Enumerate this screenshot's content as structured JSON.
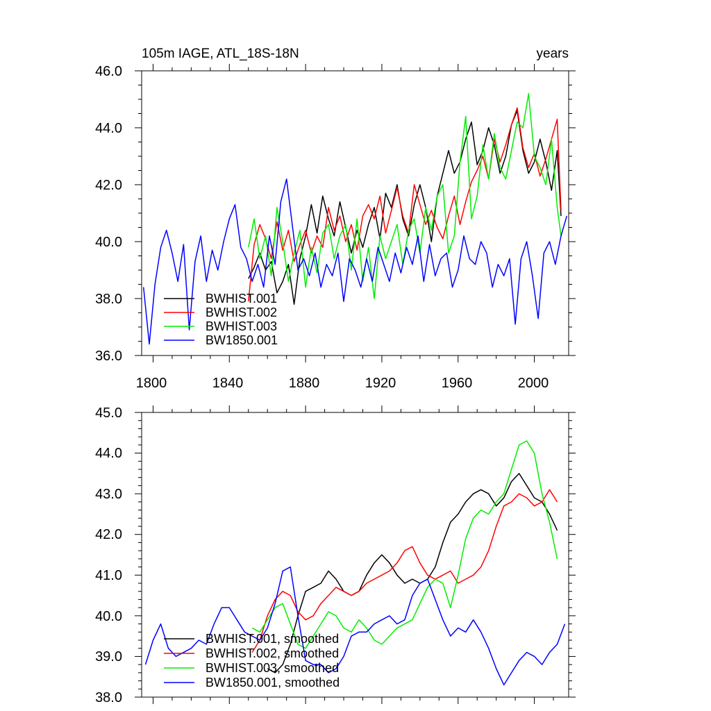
{
  "chart_data": [
    {
      "type": "line",
      "title": "105m IAGE, ATL_18S-18N",
      "units": "years",
      "xlim": [
        1794,
        2018
      ],
      "ylim": [
        36.0,
        46.0
      ],
      "x_ticks": [
        "1800",
        "1840",
        "1880",
        "1920",
        "1960",
        "2000"
      ],
      "y_ticks": [
        "36.0",
        "38.0",
        "40.0",
        "42.0",
        "44.0",
        "46.0"
      ],
      "legend_position": "bottom-left",
      "series": [
        {
          "name": "BWHIST.001",
          "color": "#000000",
          "x": [
            1850,
            1853,
            1856,
            1859,
            1862,
            1865,
            1868,
            1871,
            1874,
            1877,
            1880,
            1883,
            1886,
            1889,
            1892,
            1895,
            1898,
            1901,
            1904,
            1907,
            1910,
            1913,
            1916,
            1919,
            1922,
            1925,
            1928,
            1931,
            1934,
            1937,
            1940,
            1943,
            1946,
            1949,
            1952,
            1955,
            1958,
            1961,
            1964,
            1967,
            1970,
            1973,
            1976,
            1979,
            1982,
            1985,
            1988,
            1991,
            1994,
            1997,
            2000,
            2003,
            2006,
            2009,
            2012,
            2014
          ],
          "values": [
            38.7,
            39.1,
            39.6,
            39.0,
            39.3,
            38.2,
            38.6,
            39.2,
            37.8,
            39.4,
            40.2,
            41.3,
            40.3,
            41.6,
            40.8,
            40.2,
            41.4,
            40.5,
            39.6,
            40.4,
            39.8,
            40.6,
            41.2,
            40.1,
            41.7,
            41.2,
            42.0,
            40.8,
            40.2,
            41.3,
            42.0,
            41.2,
            40.0,
            41.6,
            42.4,
            43.2,
            42.4,
            42.8,
            43.6,
            44.2,
            42.7,
            43.2,
            44.0,
            43.4,
            42.4,
            43.0,
            44.1,
            44.6,
            43.2,
            42.4,
            42.8,
            43.6,
            42.8,
            41.8,
            43.2,
            40.9
          ]
        },
        {
          "name": "BWHIST.002",
          "color": "#ff0000",
          "x": [
            1850,
            1853,
            1856,
            1859,
            1862,
            1865,
            1868,
            1871,
            1874,
            1877,
            1880,
            1883,
            1886,
            1889,
            1892,
            1895,
            1898,
            1901,
            1904,
            1907,
            1910,
            1913,
            1916,
            1919,
            1922,
            1925,
            1928,
            1931,
            1934,
            1937,
            1940,
            1943,
            1946,
            1949,
            1952,
            1955,
            1958,
            1961,
            1964,
            1967,
            1970,
            1973,
            1976,
            1979,
            1982,
            1985,
            1988,
            1991,
            1994,
            1997,
            2000,
            2003,
            2006,
            2009,
            2012,
            2014
          ],
          "values": [
            37.9,
            39.9,
            40.6,
            40.1,
            39.4,
            40.7,
            39.7,
            40.4,
            39.3,
            39.9,
            40.4,
            39.6,
            40.2,
            39.8,
            41.2,
            40.4,
            40.9,
            40.0,
            40.6,
            39.7,
            40.9,
            41.3,
            40.8,
            41.6,
            40.3,
            41.1,
            41.9,
            40.9,
            40.3,
            42.0,
            41.3,
            40.6,
            41.1,
            40.5,
            40.1,
            40.9,
            41.6,
            40.6,
            41.4,
            42.1,
            42.5,
            43.0,
            42.2,
            43.6,
            42.8,
            43.4,
            44.1,
            44.7,
            43.3,
            42.6,
            43.1,
            42.3,
            42.9,
            43.6,
            44.3,
            41.1
          ]
        },
        {
          "name": "BWHIST.003",
          "color": "#00ee00",
          "x": [
            1850,
            1853,
            1856,
            1859,
            1862,
            1865,
            1868,
            1871,
            1874,
            1877,
            1880,
            1883,
            1886,
            1889,
            1892,
            1895,
            1898,
            1901,
            1904,
            1907,
            1910,
            1913,
            1916,
            1919,
            1922,
            1925,
            1928,
            1931,
            1934,
            1937,
            1940,
            1943,
            1946,
            1949,
            1952,
            1955,
            1958,
            1961,
            1964,
            1967,
            1970,
            1973,
            1976,
            1979,
            1982,
            1985,
            1988,
            1991,
            1994,
            1997,
            2000,
            2003,
            2006,
            2009,
            2012,
            2014
          ],
          "values": [
            39.8,
            40.8,
            39.4,
            40.2,
            38.8,
            41.2,
            40.0,
            38.6,
            39.6,
            40.4,
            38.4,
            39.8,
            38.9,
            40.3,
            40.6,
            39.4,
            40.2,
            40.6,
            39.0,
            40.8,
            38.6,
            39.8,
            38.0,
            40.2,
            39.4,
            40.0,
            40.6,
            39.2,
            40.4,
            40.8,
            39.6,
            41.2,
            40.4,
            41.6,
            42.0,
            39.6,
            40.2,
            42.8,
            44.4,
            40.8,
            41.6,
            43.4,
            42.2,
            43.8,
            42.6,
            42.2,
            43.2,
            44.2,
            44.0,
            45.2,
            43.0,
            42.6,
            42.0,
            43.6,
            41.2,
            40.2
          ]
        },
        {
          "name": "BW1850.001",
          "color": "#0000ff",
          "x": [
            1795,
            1798,
            1801,
            1804,
            1807,
            1810,
            1813,
            1816,
            1819,
            1822,
            1825,
            1828,
            1831,
            1834,
            1837,
            1840,
            1843,
            1846,
            1849,
            1852,
            1855,
            1858,
            1861,
            1864,
            1867,
            1870,
            1873,
            1876,
            1879,
            1882,
            1885,
            1888,
            1891,
            1894,
            1897,
            1900,
            1903,
            1906,
            1909,
            1912,
            1915,
            1918,
            1921,
            1924,
            1927,
            1930,
            1933,
            1936,
            1939,
            1942,
            1945,
            1948,
            1951,
            1954,
            1957,
            1960,
            1963,
            1966,
            1969,
            1972,
            1975,
            1978,
            1981,
            1984,
            1987,
            1990,
            1993,
            1996,
            1999,
            2002,
            2005,
            2008,
            2011,
            2014,
            2017
          ],
          "values": [
            38.4,
            36.4,
            38.5,
            39.8,
            40.4,
            39.6,
            38.6,
            39.9,
            36.9,
            39.3,
            40.2,
            38.6,
            39.7,
            39.0,
            40.0,
            40.8,
            41.3,
            39.8,
            39.4,
            38.6,
            39.2,
            38.4,
            40.2,
            39.2,
            41.4,
            42.2,
            40.6,
            39.0,
            39.4,
            38.8,
            39.6,
            38.4,
            39.2,
            38.8,
            39.6,
            37.9,
            39.4,
            39.0,
            38.4,
            39.4,
            38.6,
            39.8,
            39.2,
            38.6,
            39.6,
            38.9,
            39.8,
            39.2,
            40.2,
            38.6,
            39.9,
            38.8,
            39.4,
            39.6,
            38.4,
            39.0,
            40.2,
            39.4,
            39.2,
            40.0,
            39.6,
            38.4,
            39.2,
            38.8,
            39.4,
            37.1,
            39.4,
            40.0,
            38.8,
            37.3,
            39.6,
            40.0,
            39.2,
            40.2,
            40.9
          ]
        }
      ]
    },
    {
      "type": "line",
      "title": "",
      "xlim": [
        1794,
        2018
      ],
      "ylim": [
        38.0,
        45.0
      ],
      "x_ticks": [],
      "y_ticks": [
        "38.0",
        "39.0",
        "40.0",
        "41.0",
        "42.0",
        "43.0",
        "44.0",
        "45.0"
      ],
      "legend_position": "bottom-left",
      "series": [
        {
          "name": "BWHIST.001, smoothed",
          "color": "#000000",
          "x": [
            1860,
            1864,
            1868,
            1872,
            1876,
            1880,
            1884,
            1888,
            1892,
            1896,
            1900,
            1904,
            1908,
            1912,
            1916,
            1920,
            1924,
            1928,
            1932,
            1936,
            1940,
            1944,
            1948,
            1952,
            1956,
            1960,
            1964,
            1968,
            1972,
            1976,
            1980,
            1984,
            1988,
            1992,
            1996,
            2000,
            2004,
            2008,
            2012
          ],
          "values": [
            38.7,
            38.6,
            38.8,
            39.3,
            40.0,
            40.6,
            40.7,
            40.8,
            41.1,
            40.9,
            40.6,
            40.5,
            40.6,
            41.0,
            41.3,
            41.5,
            41.3,
            41.0,
            40.8,
            40.9,
            40.8,
            40.9,
            41.2,
            41.8,
            42.3,
            42.5,
            42.8,
            43.0,
            43.1,
            43.0,
            42.7,
            42.9,
            43.3,
            43.5,
            43.2,
            42.9,
            42.8,
            42.5,
            42.1
          ]
        },
        {
          "name": "BWHIST.002, smoothed",
          "color": "#ff0000",
          "x": [
            1852,
            1856,
            1860,
            1864,
            1868,
            1872,
            1876,
            1880,
            1884,
            1888,
            1892,
            1896,
            1900,
            1904,
            1908,
            1912,
            1916,
            1920,
            1924,
            1928,
            1932,
            1936,
            1940,
            1944,
            1948,
            1952,
            1956,
            1960,
            1964,
            1968,
            1972,
            1976,
            1980,
            1984,
            1988,
            1992,
            1996,
            2000,
            2004,
            2008,
            2012
          ],
          "values": [
            39.1,
            39.4,
            40.0,
            40.4,
            40.6,
            40.5,
            40.1,
            39.9,
            40.0,
            40.3,
            40.5,
            40.7,
            40.6,
            40.5,
            40.6,
            40.8,
            40.9,
            41.0,
            41.1,
            41.3,
            41.6,
            41.7,
            41.3,
            41.0,
            40.9,
            41.0,
            41.1,
            40.8,
            40.9,
            41.0,
            41.2,
            41.6,
            42.2,
            42.7,
            42.8,
            43.0,
            42.9,
            42.7,
            42.8,
            43.1,
            42.8
          ]
        },
        {
          "name": "BWHIST.003, smoothed",
          "color": "#00ee00",
          "x": [
            1852,
            1856,
            1860,
            1864,
            1868,
            1872,
            1876,
            1880,
            1884,
            1888,
            1892,
            1896,
            1900,
            1904,
            1908,
            1912,
            1916,
            1920,
            1924,
            1928,
            1932,
            1936,
            1940,
            1944,
            1948,
            1952,
            1956,
            1960,
            1964,
            1968,
            1972,
            1976,
            1980,
            1984,
            1988,
            1992,
            1996,
            2000,
            2004,
            2008,
            2012
          ],
          "values": [
            39.7,
            39.6,
            39.9,
            40.2,
            40.3,
            39.8,
            39.3,
            39.2,
            39.5,
            39.8,
            40.1,
            40.0,
            39.7,
            39.6,
            39.9,
            39.7,
            39.4,
            39.3,
            39.5,
            39.7,
            39.8,
            39.9,
            40.3,
            40.7,
            40.9,
            40.8,
            40.2,
            41.0,
            41.9,
            42.4,
            42.6,
            42.5,
            42.8,
            43.0,
            43.6,
            44.2,
            44.3,
            44.0,
            43.0,
            42.3,
            41.4
          ]
        },
        {
          "name": "BW1850.001, smoothed",
          "color": "#0000ff",
          "x": [
            1796,
            1800,
            1804,
            1808,
            1812,
            1816,
            1820,
            1824,
            1828,
            1832,
            1836,
            1840,
            1844,
            1848,
            1852,
            1856,
            1860,
            1864,
            1868,
            1872,
            1876,
            1880,
            1884,
            1888,
            1892,
            1896,
            1900,
            1904,
            1908,
            1912,
            1916,
            1920,
            1924,
            1928,
            1932,
            1936,
            1940,
            1944,
            1948,
            1952,
            1956,
            1960,
            1964,
            1968,
            1972,
            1976,
            1980,
            1984,
            1988,
            1992,
            1996,
            2000,
            2004,
            2008,
            2012,
            2016
          ],
          "values": [
            38.8,
            39.4,
            39.8,
            39.2,
            39.0,
            39.1,
            39.2,
            39.4,
            39.3,
            39.8,
            40.2,
            40.2,
            39.9,
            39.6,
            39.5,
            39.4,
            39.7,
            40.3,
            41.1,
            41.2,
            40.0,
            38.9,
            38.8,
            38.8,
            38.6,
            38.7,
            39.0,
            39.5,
            39.6,
            39.6,
            39.8,
            39.9,
            40.0,
            39.8,
            39.9,
            40.5,
            40.8,
            40.9,
            40.4,
            39.9,
            39.5,
            39.7,
            39.6,
            39.9,
            39.6,
            39.2,
            38.7,
            38.3,
            38.6,
            38.9,
            39.1,
            39.0,
            38.8,
            39.1,
            39.3,
            39.8
          ]
        }
      ]
    }
  ]
}
